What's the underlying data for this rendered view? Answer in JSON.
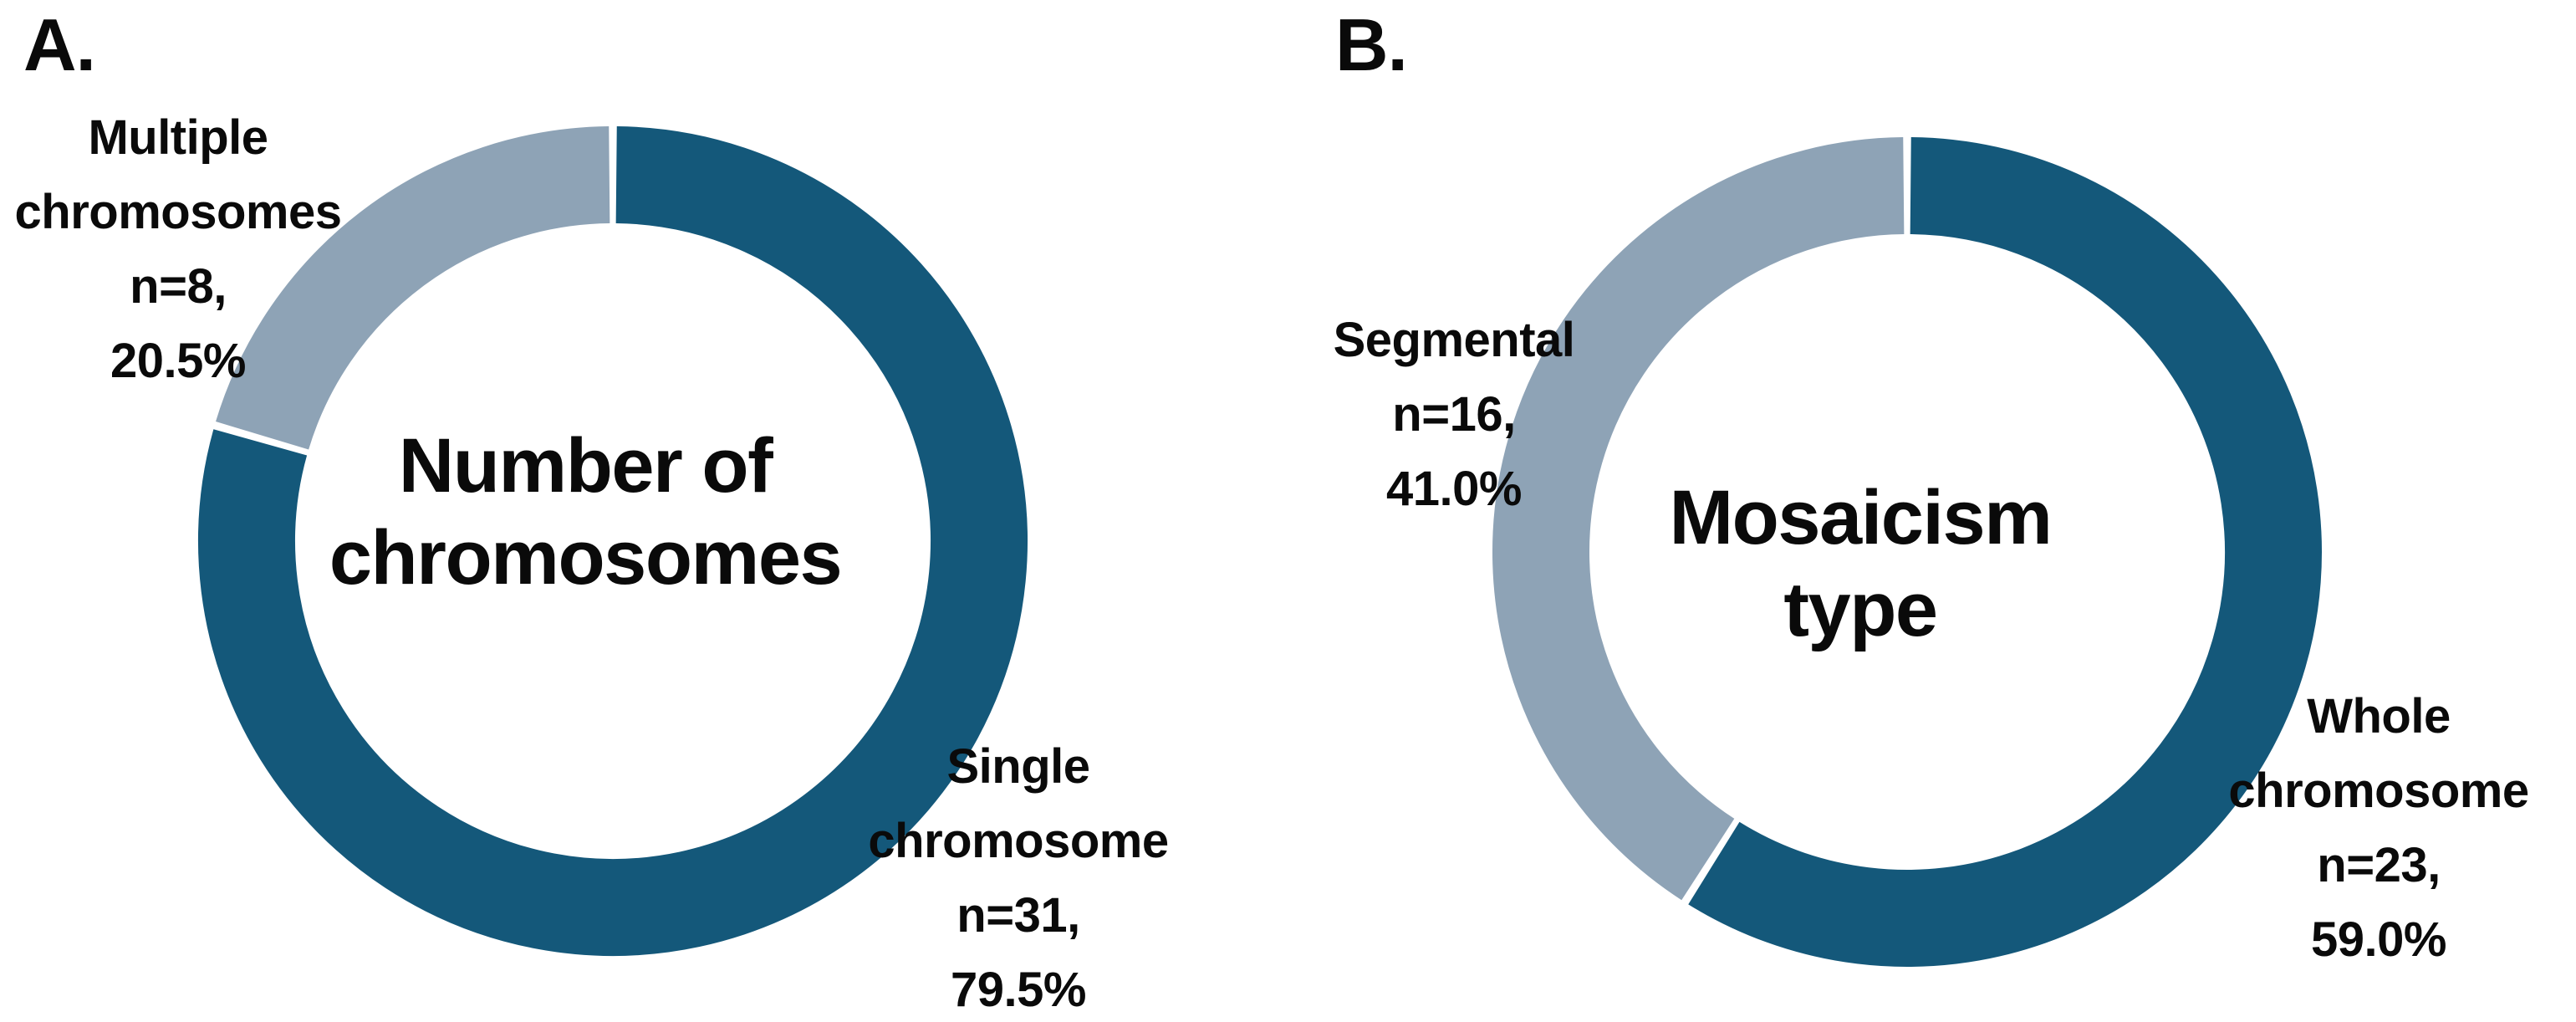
{
  "figure": {
    "background_color": "#ffffff",
    "text_color": "#0a0a0a",
    "panels": [
      {
        "letter": "A."
      },
      {
        "letter": "B."
      }
    ]
  },
  "chart_data": [
    {
      "type": "pie",
      "subtype": "donut",
      "panel_letter": "A.",
      "title": "Number of\nchromosomes",
      "start_angle_deg": 0,
      "direction": "clockwise",
      "legend_position": "none",
      "slices": [
        {
          "category": "Single chromosome",
          "n": 31,
          "percent": 79.5,
          "color": "#14587A",
          "label_text": "Single\nchromosome\nn=31,\n79.5%"
        },
        {
          "category": "Multiple chromosomes",
          "n": 8,
          "percent": 20.5,
          "color": "#8EA3B6",
          "label_text": "Multiple\nchromosomes\nn=8,\n20.5%"
        }
      ]
    },
    {
      "type": "pie",
      "subtype": "donut",
      "panel_letter": "B.",
      "title": "Mosaicism\ntype",
      "start_angle_deg": 0,
      "direction": "clockwise",
      "legend_position": "none",
      "slices": [
        {
          "category": "Whole chromosome",
          "n": 23,
          "percent": 59.0,
          "color": "#14587A",
          "label_text": "Whole\nchromosome\nn=23,\n59.0%"
        },
        {
          "category": "Segmental",
          "n": 16,
          "percent": 41.0,
          "color": "#8EA3B6",
          "label_text": "Segmental\nn=16,\n41.0%"
        }
      ]
    }
  ]
}
